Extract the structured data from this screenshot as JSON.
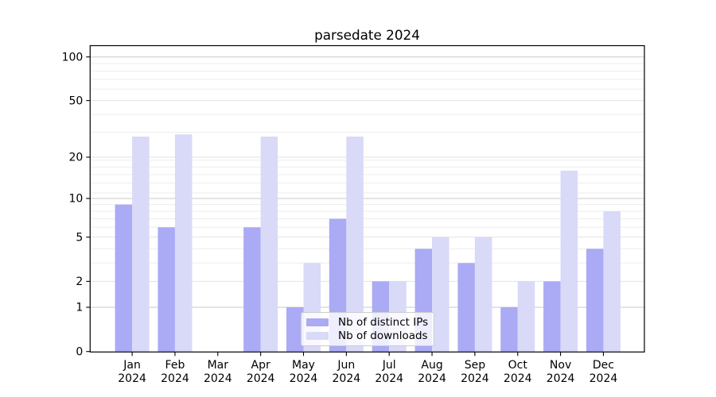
{
  "chart_data": {
    "type": "bar",
    "title": "parsedate 2024",
    "categories": [
      "Jan 2024",
      "Feb 2024",
      "Mar 2024",
      "Apr 2024",
      "May 2024",
      "Jun 2024",
      "Jul 2024",
      "Aug 2024",
      "Sep 2024",
      "Oct 2024",
      "Nov 2024",
      "Dec 2024"
    ],
    "series": [
      {
        "name": "Nb of distinct IPs",
        "color": "#aaaaf5",
        "values": [
          9,
          6,
          0,
          6,
          1,
          7,
          2,
          4,
          3,
          1,
          2,
          4
        ]
      },
      {
        "name": "Nb of downloads",
        "color": "#d9d9f8",
        "values": [
          28,
          29,
          0,
          28,
          3,
          28,
          2,
          5,
          5,
          2,
          16,
          8
        ]
      }
    ],
    "xlabel": "",
    "ylabel": "",
    "yscale": "log1p",
    "y_ticks": [
      0,
      1,
      2,
      5,
      10,
      20,
      50,
      100
    ],
    "ylim": [
      0,
      120
    ],
    "grid": {
      "on": true,
      "major_values": [
        1,
        10,
        100
      ],
      "light_values": [
        2,
        5,
        20,
        50
      ],
      "minor_values": [
        3,
        4,
        6,
        7,
        8,
        9,
        11,
        13,
        15,
        17,
        19,
        30,
        40,
        60,
        70,
        80,
        90
      ]
    },
    "legend": {
      "position": "lower center",
      "items": [
        "Nb of distinct IPs",
        "Nb of downloads"
      ]
    }
  }
}
